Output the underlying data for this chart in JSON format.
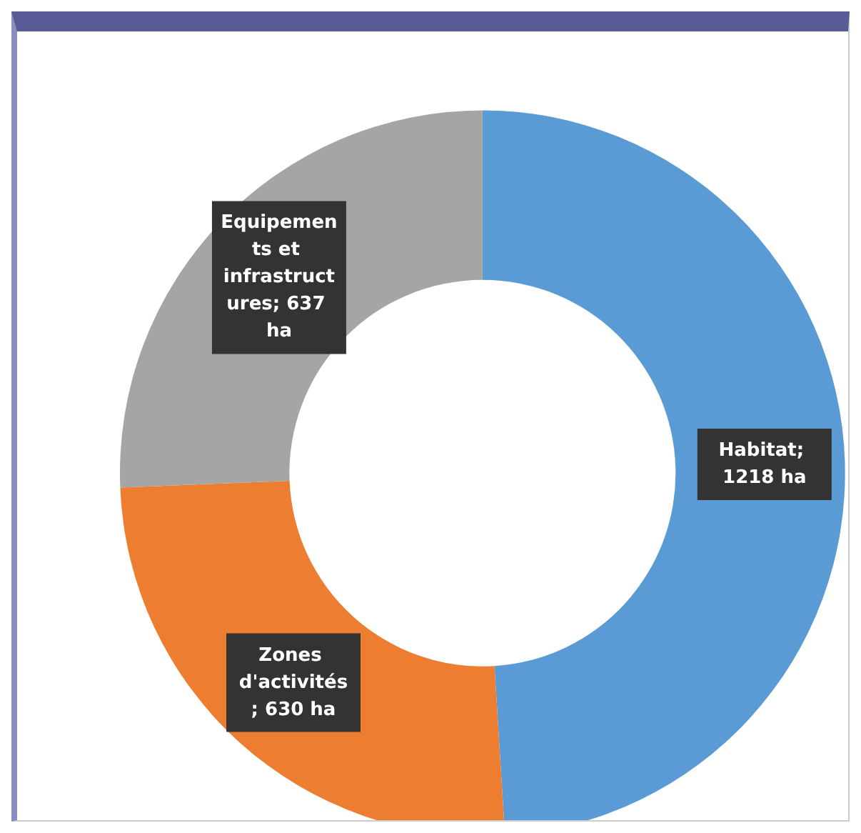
{
  "chart_data": {
    "type": "donut",
    "categories": [
      "Habitat",
      "Zones d'activités",
      "Equipements et infrastructures"
    ],
    "values": [
      1218,
      630,
      637
    ],
    "colors": [
      "#5b9bd5",
      "#ed7d31",
      "#a5a5a5"
    ],
    "value_labels": [
      "; 1218 ha",
      "; 630 ha",
      "; 637 ha"
    ],
    "legend": false
  }
}
